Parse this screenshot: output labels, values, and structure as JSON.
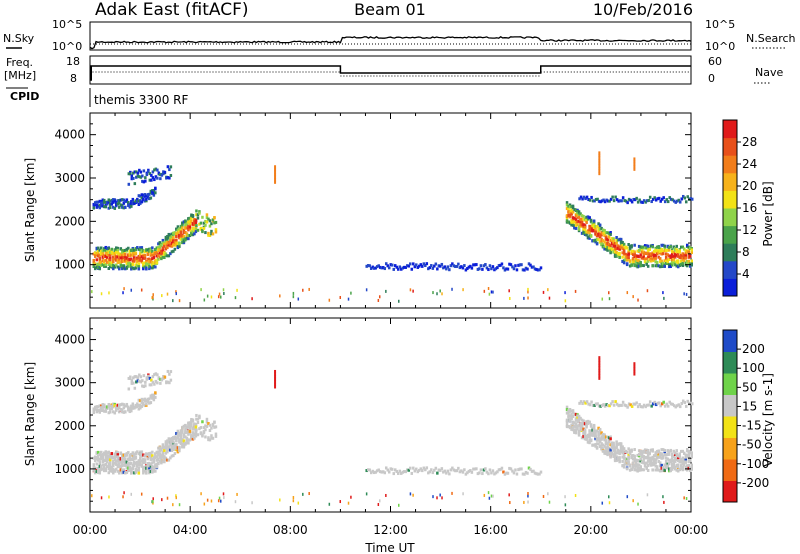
{
  "header": {
    "station": "Adak East (fitACF)",
    "beam": "Beam 01",
    "date": "10/Feb/2016"
  },
  "panels": {
    "sky_label": "N.Sky",
    "search_label": "N.Search",
    "freq_label": "Freq.",
    "freq_unit": "[MHz]",
    "cpid_label": "CPID",
    "nave_label": "Nave",
    "cpid_value": "themis 3300 RF",
    "sky_ticks": [
      "10^5",
      "10^0"
    ],
    "search_ticks": [
      "10^5",
      "10^0"
    ],
    "freq_ticks": [
      "18",
      "8"
    ],
    "nave_ticks": [
      "60",
      "0"
    ]
  },
  "colors": {
    "power": [
      "#0b1fd9",
      "#2448c8",
      "#2e7d5a",
      "#4aa34a",
      "#8fd34a",
      "#f2e216",
      "#f7b21a",
      "#f27d1a",
      "#e8501a",
      "#e01a1a"
    ],
    "velocity": [
      "#e01a1a",
      "#f06a14",
      "#f7a21a",
      "#f2e216",
      "#c8c8c8",
      "#6fd34a",
      "#2e8b57",
      "#1f4bc8"
    ]
  },
  "chart_data": [
    {
      "type": "heatmap",
      "name": "power-panel",
      "xlabel": "",
      "ylabel": "Slant Range [km]",
      "y_ticks": [
        "1000",
        "2000",
        "3000",
        "4000"
      ],
      "colorbar_label": "Power [dB]",
      "colorbar_ticks": [
        "4",
        "8",
        "12",
        "16",
        "20",
        "24",
        "28"
      ],
      "ylim": [
        0,
        4500
      ],
      "xlim_hours": [
        0,
        24
      ]
    },
    {
      "type": "heatmap",
      "name": "velocity-panel",
      "xlabel": "Time UT",
      "ylabel": "Slant Range [km]",
      "y_ticks": [
        "1000",
        "2000",
        "3000",
        "4000"
      ],
      "x_ticks": [
        "00:00",
        "04:00",
        "08:00",
        "12:00",
        "16:00",
        "20:00",
        "00:00"
      ],
      "colorbar_label": "Velocity [m s-1]",
      "colorbar_ticks": [
        "-200",
        "-100",
        "-50",
        "-15",
        "15",
        "50",
        "100",
        "200"
      ],
      "ylim": [
        0,
        4500
      ],
      "xlim_hours": [
        0,
        24
      ]
    }
  ]
}
